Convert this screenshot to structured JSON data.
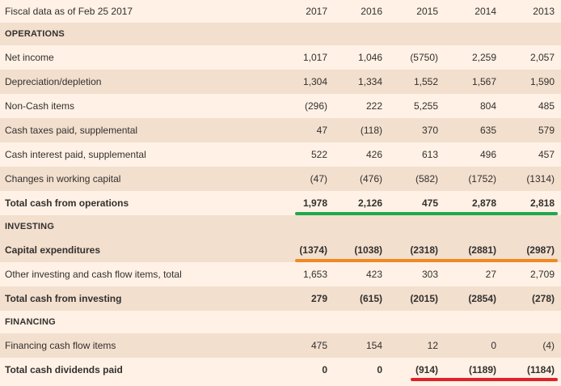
{
  "header": {
    "title": "Fiscal data as of Feb 25 2017",
    "years": [
      "2017",
      "2016",
      "2015",
      "2014",
      "2013"
    ]
  },
  "sections": {
    "operations": "OPERATIONS",
    "investing": "INVESTING",
    "financing": "FINANCING"
  },
  "rows": {
    "net_income": {
      "label": "Net income",
      "values": [
        "1,017",
        "1,046",
        "(5750)",
        "2,259",
        "2,057"
      ]
    },
    "depreciation": {
      "label": "Depreciation/depletion",
      "values": [
        "1,304",
        "1,334",
        "1,552",
        "1,567",
        "1,590"
      ]
    },
    "non_cash": {
      "label": "Non-Cash items",
      "values": [
        "(296)",
        "222",
        "5,255",
        "804",
        "485"
      ]
    },
    "cash_taxes": {
      "label": "Cash taxes paid, supplemental",
      "values": [
        "47",
        "(118)",
        "370",
        "635",
        "579"
      ]
    },
    "cash_interest": {
      "label": "Cash interest paid, supplemental",
      "values": [
        "522",
        "426",
        "613",
        "496",
        "457"
      ]
    },
    "working_capital": {
      "label": "Changes in working capital",
      "values": [
        "(47)",
        "(476)",
        "(582)",
        "(1752)",
        "(1314)"
      ]
    },
    "total_operations": {
      "label": "Total cash from operations",
      "values": [
        "1,978",
        "2,126",
        "475",
        "2,878",
        "2,818"
      ]
    },
    "capex": {
      "label": "Capital expenditures",
      "values": [
        "(1374)",
        "(1038)",
        "(2318)",
        "(2881)",
        "(2987)"
      ]
    },
    "other_investing": {
      "label": "Other investing and cash flow items, total",
      "values": [
        "1,653",
        "423",
        "303",
        "27",
        "2,709"
      ]
    },
    "total_investing": {
      "label": "Total cash from investing",
      "values": [
        "279",
        "(615)",
        "(2015)",
        "(2854)",
        "(278)"
      ]
    },
    "financing_items": {
      "label": "Financing cash flow items",
      "values": [
        "475",
        "154",
        "12",
        "0",
        "(4)"
      ]
    },
    "total_dividends": {
      "label": "Total cash dividends paid",
      "values": [
        "0",
        "0",
        "(914)",
        "(1189)",
        "(1184)"
      ]
    }
  },
  "highlights": {
    "green": "#1fa84f",
    "orange": "#f08a24",
    "red": "#e0202a"
  }
}
